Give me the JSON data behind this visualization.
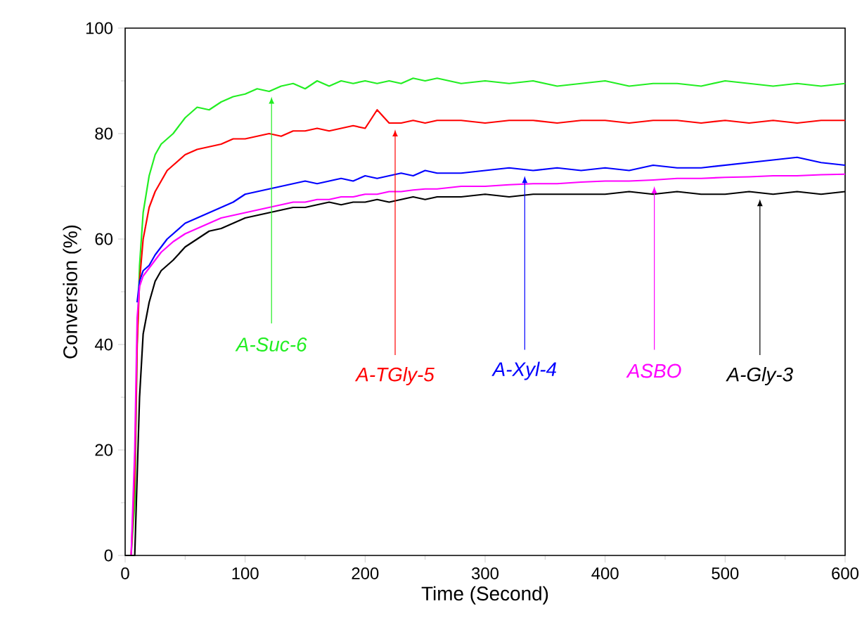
{
  "chart_data": {
    "type": "line",
    "xlabel": "Time (Second)",
    "ylabel": "Conversion (%)",
    "xlim": [
      0,
      600
    ],
    "ylim": [
      0,
      100
    ],
    "xticks": [
      0,
      {
        "value": 50,
        "label": null
      },
      100,
      {
        "value": 150,
        "label": null
      },
      200,
      {
        "value": 250,
        "label": null
      },
      300,
      {
        "value": 350,
        "label": null
      },
      400,
      {
        "value": 450,
        "label": null
      },
      500,
      {
        "value": 550,
        "label": null
      },
      600
    ],
    "yticks": [
      0,
      {
        "value": 10,
        "label": null
      },
      20,
      {
        "value": 30,
        "label": null
      },
      40,
      {
        "value": 50,
        "label": null
      },
      60,
      {
        "value": 70,
        "label": null
      },
      80,
      {
        "value": 90,
        "label": null
      },
      100
    ],
    "x": [
      0,
      5,
      8,
      10,
      12,
      15,
      20,
      25,
      30,
      35,
      40,
      50,
      60,
      70,
      80,
      90,
      100,
      110,
      120,
      130,
      140,
      150,
      160,
      170,
      180,
      190,
      200,
      210,
      220,
      230,
      240,
      250,
      260,
      280,
      300,
      320,
      340,
      360,
      380,
      400,
      420,
      440,
      460,
      480,
      500,
      520,
      540,
      560,
      580,
      600
    ],
    "series": [
      {
        "name": "A-Suc-6",
        "color": "#22ee22",
        "values": [
          0,
          0,
          10,
          40,
          55,
          65,
          72,
          76,
          78,
          79,
          80,
          83,
          85,
          84.5,
          86,
          87,
          87.5,
          88.5,
          88,
          89,
          89.5,
          88.5,
          90,
          89,
          90,
          89.5,
          90,
          89.5,
          90,
          89.5,
          90.5,
          90,
          90.5,
          89.5,
          90,
          89.5,
          90,
          89,
          89.5,
          90,
          89,
          89.5,
          89.5,
          89,
          90,
          89.5,
          89,
          89.5,
          89,
          89.5
        ]
      },
      {
        "name": "A-TGly-5",
        "color": "#ff0000",
        "values": [
          0,
          0,
          15,
          40,
          52,
          60,
          66,
          69,
          71,
          73,
          74,
          76,
          77,
          77.5,
          78,
          79,
          79,
          79.5,
          80,
          79.5,
          80.5,
          80.5,
          81,
          80.5,
          81,
          81.5,
          81,
          84.5,
          82,
          82,
          82.5,
          82,
          82.5,
          82.5,
          82,
          82.5,
          82.5,
          82,
          82.5,
          82.5,
          82,
          82.5,
          82.5,
          82,
          82.5,
          82,
          82.5,
          82,
          82.5,
          82.5
        ]
      },
      {
        "name": "A-Xyl-4",
        "color": "#0000ff",
        "values": [
          null,
          null,
          null,
          48,
          52,
          54,
          55,
          57,
          58.5,
          60,
          61,
          63,
          64,
          65,
          66,
          67,
          68.5,
          69,
          69.5,
          70,
          70.5,
          71,
          70.5,
          71,
          71.5,
          71,
          72,
          71.5,
          72,
          72.5,
          72,
          73,
          72.5,
          72.5,
          73,
          73.5,
          73,
          73.5,
          73,
          73.5,
          73,
          74,
          73.5,
          73.5,
          74,
          74.5,
          75,
          75.5,
          74.5,
          74
        ]
      },
      {
        "name": "ASBO",
        "color": "#ff00ff",
        "values": [
          0,
          0,
          20,
          45,
          51,
          53,
          54.5,
          56,
          57.5,
          58.5,
          59.5,
          61,
          62,
          63,
          64,
          64.5,
          65,
          65.5,
          66,
          66.5,
          67,
          67,
          67.5,
          67.5,
          68,
          68,
          68.5,
          68.5,
          69,
          69,
          69.3,
          69.5,
          69.5,
          70,
          70,
          70.3,
          70.5,
          70.5,
          70.8,
          71,
          71,
          71.2,
          71.5,
          71.5,
          71.7,
          71.8,
          72,
          72,
          72.2,
          72.3
        ]
      },
      {
        "name": "A-Gly-3",
        "color": "#000000",
        "values": [
          0,
          0,
          0,
          15,
          30,
          42,
          48,
          52,
          54,
          55,
          56,
          58.5,
          60,
          61.5,
          62,
          63,
          64,
          64.5,
          65,
          65.5,
          66,
          66,
          66.5,
          67,
          66.5,
          67,
          67,
          67.5,
          67,
          67.5,
          68,
          67.5,
          68,
          68,
          68.5,
          68,
          68.5,
          68.5,
          68.5,
          68.5,
          69,
          68.5,
          69,
          68.5,
          68.5,
          69,
          68.5,
          69,
          68.5,
          69
        ]
      }
    ]
  }
}
